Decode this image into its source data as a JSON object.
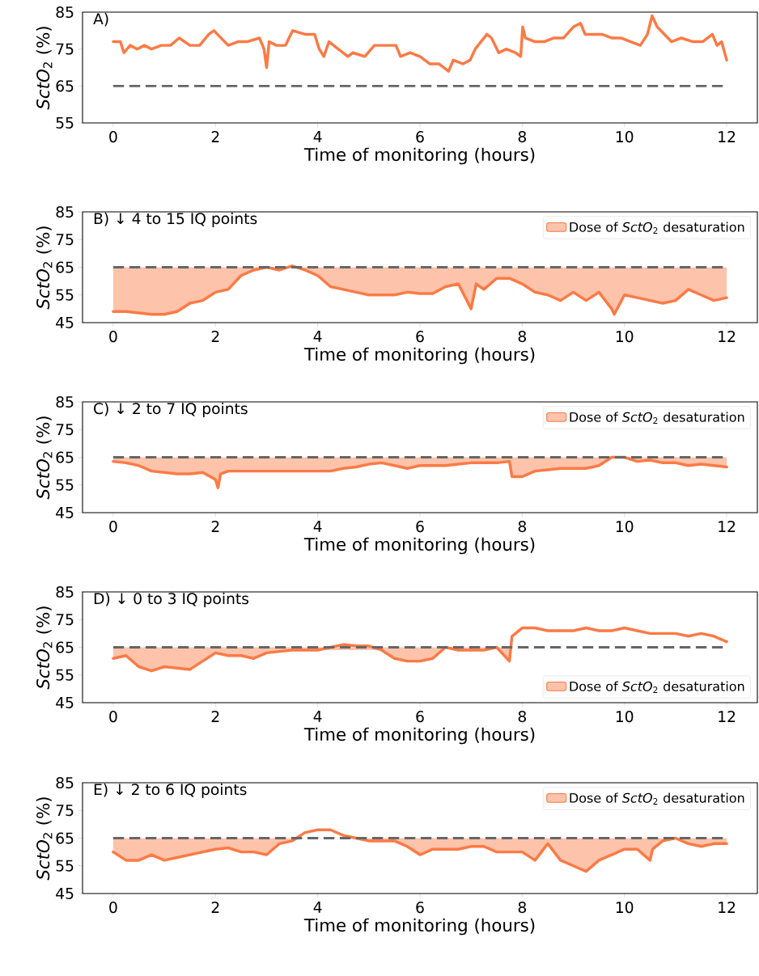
{
  "chart_data": [
    {
      "type": "line",
      "title": "A)",
      "xlabel": "Time of  monitoring (hours)",
      "ylabel": "*SctO*$_{2}$ (%)",
      "xlim": [
        -0.6,
        12.6
      ],
      "xticks": [
        0,
        2,
        4,
        6,
        8,
        10,
        12
      ],
      "ylim": [
        55,
        85
      ],
      "yticks": [
        55,
        65,
        75,
        85
      ],
      "ref_lines": [
        {
          "axis": "y",
          "value": 65,
          "color": "#666666",
          "line_style": "dashed"
        }
      ],
      "series": [
        {
          "color": "#fb7a45",
          "x": [
            0,
            0.14,
            0.21,
            0.33,
            0.47,
            0.61,
            0.75,
            0.94,
            1.12,
            1.29,
            1.5,
            1.69,
            1.87,
            1.97,
            2.11,
            2.25,
            2.44,
            2.62,
            2.86,
            2.95,
            3.0,
            3.05,
            3.19,
            3.37,
            3.51,
            3.75,
            3.94,
            4.03,
            4.12,
            4.22,
            4.4,
            4.59,
            4.69,
            4.92,
            5.11,
            5.25,
            5.53,
            5.62,
            5.81,
            6.0,
            6.19,
            6.37,
            6.56,
            6.65,
            6.84,
            6.98,
            7.08,
            7.31,
            7.4,
            7.54,
            7.69,
            7.87,
            7.97,
            8.01,
            8.06,
            8.25,
            8.43,
            8.62,
            8.81,
            9.0,
            9.14,
            9.23,
            9.37,
            9.56,
            9.75,
            9.93,
            10.12,
            10.31,
            10.45,
            10.54,
            10.64,
            10.78,
            10.92,
            11.11,
            11.34,
            11.53,
            11.72,
            11.81,
            11.9,
            12.0
          ],
          "values": [
            77,
            77,
            74,
            76,
            75,
            76,
            75,
            76,
            76,
            78,
            76,
            76,
            79,
            80,
            78,
            76,
            77,
            77,
            78,
            75,
            70,
            77,
            76,
            76,
            80,
            79,
            79,
            75,
            73,
            77,
            75,
            73,
            74,
            73,
            76,
            76,
            76,
            73,
            74,
            73,
            71,
            71,
            69,
            72,
            71,
            72,
            75,
            79,
            78,
            74,
            75,
            74,
            73,
            81,
            78,
            77,
            77,
            78,
            78,
            81,
            82,
            79,
            79,
            79,
            78,
            78,
            77,
            76,
            79,
            84,
            81,
            79,
            77,
            78,
            77,
            77,
            79,
            76,
            77,
            72
          ]
        }
      ]
    },
    {
      "type": "line",
      "title": "B) ↓ 4 to 15 IQ points",
      "xlabel": "Time of  monitoring (hours)",
      "ylabel": "*SctO*$_{2}$ (%)",
      "xlim": [
        -0.6,
        12.6
      ],
      "xticks": [
        0,
        2,
        4,
        6,
        8,
        10,
        12
      ],
      "ylim": [
        45,
        85
      ],
      "yticks": [
        45,
        55,
        65,
        75,
        85
      ],
      "legend": "top right",
      "ref_lines": [
        {
          "axis": "y",
          "value": 65,
          "color": "#666666",
          "line_style": "dashed"
        }
      ],
      "series": [
        {
          "name": "Dose of *SctO*$_{2}$ desaturation",
          "color": "#fb7a45",
          "x": [
            0,
            0.25,
            0.5,
            0.75,
            1.0,
            1.25,
            1.5,
            1.75,
            2.0,
            2.25,
            2.5,
            2.75,
            3.0,
            3.25,
            3.5,
            3.75,
            4.0,
            4.25,
            4.5,
            4.75,
            5.0,
            5.25,
            5.5,
            5.75,
            6.0,
            6.25,
            6.5,
            6.75,
            7.0,
            7.1,
            7.25,
            7.5,
            7.75,
            8.0,
            8.25,
            8.5,
            8.75,
            9.0,
            9.25,
            9.5,
            9.75,
            9.8,
            10.0,
            10.25,
            10.5,
            10.75,
            11.0,
            11.25,
            11.5,
            11.75,
            12.0
          ],
          "values": [
            49,
            49,
            48.5,
            48,
            48,
            49,
            52,
            53,
            56,
            57,
            62,
            64,
            65,
            64,
            65.5,
            64,
            62,
            58,
            57,
            56,
            55,
            55,
            55,
            56,
            55.5,
            55.5,
            58,
            59,
            50,
            59,
            57,
            61,
            61,
            59,
            56,
            55,
            53,
            56,
            53,
            56,
            50,
            48,
            55,
            54,
            53,
            52,
            53,
            57,
            55,
            53,
            54
          ],
          "lower": [
            49,
            49,
            48.5,
            48,
            48,
            49,
            52,
            53,
            56,
            57,
            62,
            64,
            65,
            64,
            65,
            64,
            62,
            58,
            57,
            56,
            55,
            55,
            55,
            56,
            55.5,
            55.5,
            58,
            59,
            50,
            59,
            57,
            61,
            61,
            59,
            56,
            55,
            53,
            56,
            53,
            56,
            50,
            48,
            55,
            54,
            53,
            52,
            53,
            57,
            55,
            53,
            54
          ],
          "upper": [
            65,
            65,
            65,
            65,
            65,
            65,
            65,
            65,
            65,
            65,
            65,
            65,
            65,
            65,
            65,
            65,
            65,
            65,
            65,
            65,
            65,
            65,
            65,
            65,
            65,
            65,
            65,
            65,
            65,
            65,
            65,
            65,
            65,
            65,
            65,
            65,
            65,
            65,
            65,
            65,
            65,
            65,
            65,
            65,
            65,
            65,
            65,
            65,
            65,
            65,
            65
          ]
        }
      ]
    },
    {
      "type": "line",
      "title": "C) ↓ 2 to 7 IQ points",
      "xlabel": "Time of  monitoring (hours)",
      "ylabel": "*SctO*$_{2}$ (%)",
      "xlim": [
        -0.6,
        12.6
      ],
      "xticks": [
        0,
        2,
        4,
        6,
        8,
        10,
        12
      ],
      "ylim": [
        45,
        85
      ],
      "yticks": [
        45,
        55,
        65,
        75,
        85
      ],
      "legend": "top right",
      "ref_lines": [
        {
          "axis": "y",
          "value": 65,
          "color": "#666666",
          "line_style": "dashed"
        }
      ],
      "series": [
        {
          "name": "Dose of *SctO*$_{2}$ desaturation",
          "color": "#fb7a45",
          "x": [
            0,
            0.25,
            0.5,
            0.75,
            1.0,
            1.25,
            1.5,
            1.75,
            2.0,
            2.05,
            2.1,
            2.25,
            2.5,
            2.75,
            3.0,
            3.25,
            3.5,
            3.75,
            4.0,
            4.25,
            4.5,
            4.75,
            5.0,
            5.25,
            5.5,
            5.75,
            6.0,
            6.25,
            6.5,
            6.75,
            7.0,
            7.25,
            7.5,
            7.75,
            7.8,
            8.0,
            8.25,
            8.5,
            8.75,
            9.0,
            9.25,
            9.5,
            9.75,
            10.0,
            10.25,
            10.5,
            10.75,
            11.0,
            11.25,
            11.5,
            11.75,
            12.0
          ],
          "values": [
            63.5,
            63,
            62,
            60,
            59.5,
            59,
            59,
            59.5,
            57,
            54,
            59,
            60,
            60,
            60,
            60,
            60,
            60,
            60,
            60,
            60,
            61,
            61.5,
            62.5,
            63,
            62,
            61,
            62,
            62,
            62,
            62.5,
            63,
            63,
            63,
            63.5,
            58,
            58,
            60,
            60.5,
            61,
            61,
            61,
            62,
            65,
            65,
            63.5,
            64,
            63,
            63,
            62,
            62.5,
            62,
            61.5
          ],
          "lower": [
            63.5,
            63,
            62,
            60,
            59.5,
            59,
            59,
            59.5,
            57,
            54,
            59,
            60,
            60,
            60,
            60,
            60,
            60,
            60,
            60,
            60,
            61,
            61.5,
            62.5,
            63,
            62,
            61,
            62,
            62,
            62,
            62.5,
            63,
            63,
            63,
            63.5,
            58,
            58,
            60,
            60.5,
            61,
            61,
            61,
            62,
            65,
            65,
            63.5,
            64,
            63,
            63,
            62,
            62.5,
            62,
            61.5
          ],
          "upper": [
            65,
            65,
            65,
            65,
            65,
            65,
            65,
            65,
            65,
            65,
            65,
            65,
            65,
            65,
            65,
            65,
            65,
            65,
            65,
            65,
            65,
            65,
            65,
            65,
            65,
            65,
            65,
            65,
            65,
            65,
            65,
            65,
            65,
            65,
            65,
            65,
            65,
            65,
            65,
            65,
            65,
            65,
            65,
            65,
            65,
            65,
            65,
            65,
            65,
            65,
            65,
            65
          ]
        }
      ]
    },
    {
      "type": "line",
      "title": "D) ↓ 0 to 3 IQ points",
      "xlabel": "Time of  monitoring (hours)",
      "ylabel": "*SctO*$_{2}$ (%)",
      "xlim": [
        -0.6,
        12.6
      ],
      "xticks": [
        0,
        2,
        4,
        6,
        8,
        10,
        12
      ],
      "ylim": [
        45,
        85
      ],
      "yticks": [
        45,
        55,
        65,
        75,
        85
      ],
      "legend": "bottom right",
      "ref_lines": [
        {
          "axis": "y",
          "value": 65,
          "color": "#666666",
          "line_style": "dashed"
        }
      ],
      "series": [
        {
          "name": "Dose of *SctO*$_{2}$ desaturation",
          "color": "#fb7a45",
          "x": [
            0,
            0.25,
            0.5,
            0.75,
            1.0,
            1.25,
            1.5,
            1.75,
            2.0,
            2.25,
            2.5,
            2.75,
            3.0,
            3.25,
            3.5,
            3.75,
            4.0,
            4.25,
            4.5,
            4.75,
            5.0,
            5.25,
            5.5,
            5.75,
            6.0,
            6.25,
            6.5,
            6.75,
            7.0,
            7.25,
            7.5,
            7.75,
            7.8,
            8.0,
            8.25,
            8.5,
            8.75,
            9.0,
            9.25,
            9.5,
            9.75,
            10.0,
            10.25,
            10.5,
            10.75,
            11.0,
            11.25,
            11.5,
            11.75,
            12.0
          ],
          "values": [
            61,
            62,
            58,
            56.5,
            58,
            57.5,
            57,
            60,
            63,
            62,
            62,
            61,
            63,
            63.5,
            64,
            64,
            64,
            65,
            66,
            65.5,
            65.5,
            64,
            61,
            60,
            60,
            61,
            65,
            64,
            64,
            64,
            65,
            60,
            69,
            72,
            72,
            71,
            71,
            71,
            72,
            71,
            71,
            72,
            71,
            70,
            70,
            70,
            69,
            70,
            69,
            67
          ],
          "lower": [
            61,
            62,
            58,
            56.5,
            58,
            57.5,
            57,
            60,
            63,
            62,
            62,
            61,
            63,
            63.5,
            64,
            64,
            64,
            null,
            null,
            null,
            null,
            64,
            61,
            60,
            60,
            61,
            65,
            64,
            64,
            64,
            65,
            60,
            null,
            null,
            null,
            null,
            null,
            null,
            null,
            null,
            null,
            null,
            null,
            null,
            null,
            null,
            null,
            null,
            null,
            null
          ],
          "upper": [
            65,
            65,
            65,
            65,
            65,
            65,
            65,
            65,
            65,
            65,
            65,
            65,
            65,
            65,
            65,
            65,
            65,
            null,
            null,
            null,
            null,
            65,
            65,
            65,
            65,
            65,
            65,
            65,
            65,
            65,
            65,
            65,
            null,
            null,
            null,
            null,
            null,
            null,
            null,
            null,
            null,
            null,
            null,
            null,
            null,
            null,
            null,
            null,
            null,
            null
          ]
        }
      ]
    },
    {
      "type": "line",
      "title": "E) ↓ 2 to 6 IQ points",
      "xlabel": "Time of  monitoring (hours)",
      "ylabel": "*SctO*$_{2}$ (%)",
      "xlim": [
        -0.6,
        12.6
      ],
      "xticks": [
        0,
        2,
        4,
        6,
        8,
        10,
        12
      ],
      "ylim": [
        45,
        85
      ],
      "yticks": [
        45,
        55,
        65,
        75,
        85
      ],
      "legend": "top right",
      "ref_lines": [
        {
          "axis": "y",
          "value": 65,
          "color": "#666666",
          "line_style": "dashed"
        }
      ],
      "series": [
        {
          "name": "Dose of *SctO*$_{2}$ desaturation",
          "color": "#fb7a45",
          "x": [
            0,
            0.25,
            0.5,
            0.75,
            1.0,
            1.25,
            1.5,
            1.75,
            2.0,
            2.25,
            2.5,
            2.75,
            3.0,
            3.25,
            3.5,
            3.75,
            4.0,
            4.25,
            4.5,
            4.75,
            5.0,
            5.25,
            5.5,
            5.75,
            6.0,
            6.25,
            6.5,
            6.75,
            7.0,
            7.25,
            7.5,
            7.75,
            8.0,
            8.25,
            8.5,
            8.75,
            9.0,
            9.25,
            9.5,
            9.75,
            10.0,
            10.25,
            10.5,
            10.55,
            10.75,
            11.0,
            11.25,
            11.5,
            11.75,
            12.0
          ],
          "values": [
            60,
            57,
            57,
            59,
            57,
            58,
            59,
            60,
            61,
            61.5,
            60,
            60,
            59,
            63,
            64,
            67,
            68,
            68,
            66,
            65,
            64,
            64,
            64,
            62,
            59,
            61,
            61,
            61,
            62,
            62,
            60,
            60,
            60,
            57,
            63,
            57,
            55,
            53,
            57,
            59,
            61,
            61,
            57,
            61,
            64,
            65,
            63,
            62,
            63,
            63
          ],
          "lower": [
            60,
            57,
            57,
            59,
            57,
            58,
            59,
            60,
            61,
            61.5,
            60,
            60,
            59,
            63,
            64,
            65,
            65,
            65,
            65,
            65,
            64,
            64,
            64,
            62,
            59,
            61,
            61,
            61,
            62,
            62,
            60,
            60,
            60,
            57,
            63,
            57,
            55,
            53,
            57,
            59,
            61,
            61,
            57,
            61,
            64,
            65,
            63,
            62,
            63,
            63
          ],
          "upper": [
            65,
            65,
            65,
            65,
            65,
            65,
            65,
            65,
            65,
            65,
            65,
            65,
            65,
            65,
            65,
            65,
            65,
            65,
            65,
            65,
            65,
            65,
            65,
            65,
            65,
            65,
            65,
            65,
            65,
            65,
            65,
            65,
            65,
            65,
            65,
            65,
            65,
            65,
            65,
            65,
            65,
            65,
            65,
            65,
            65,
            65,
            65,
            65,
            65,
            65
          ]
        }
      ]
    }
  ]
}
